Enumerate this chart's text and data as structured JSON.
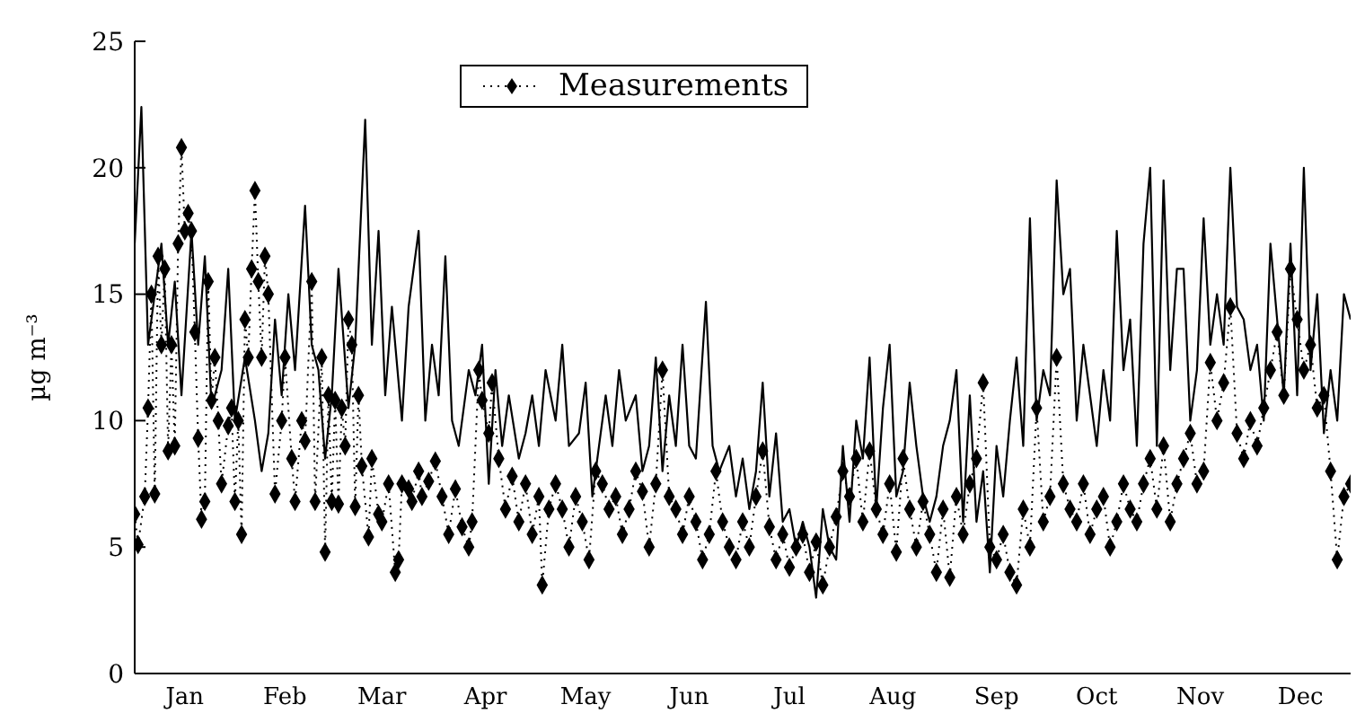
{
  "chart_data": {
    "type": "line",
    "ylabel": "µg m⁻³",
    "xlim": [
      "--01-01",
      "--12-31"
    ],
    "ylim": [
      0,
      25
    ],
    "yticks": [
      0,
      5,
      10,
      15,
      20,
      25
    ],
    "xticks": [
      {
        "value": "--01-16",
        "label": "Jan"
      },
      {
        "value": "--02-15",
        "label": "Feb"
      },
      {
        "value": "--03-16",
        "label": "Mar"
      },
      {
        "value": "--04-16",
        "label": "Apr"
      },
      {
        "value": "--05-16",
        "label": "May"
      },
      {
        "value": "--06-16",
        "label": "Jun"
      },
      {
        "value": "--07-16",
        "label": "Jul"
      },
      {
        "value": "--08-16",
        "label": "Aug"
      },
      {
        "value": "--09-16",
        "label": "Sep"
      },
      {
        "value": "--10-16",
        "label": "Oct"
      },
      {
        "value": "--11-16",
        "label": "Nov"
      },
      {
        "value": "--12-16",
        "label": "Dec"
      }
    ],
    "grid": false,
    "legend": "top",
    "tick_labels": "xy",
    "series": [
      {
        "color": "#000000",
        "marker": "none",
        "line_style": "solid",
        "x": [
          "--01-01",
          "--01-03",
          "--01-05",
          "--01-07",
          "--01-09",
          "--01-11",
          "--01-13",
          "--01-15",
          "--01-18",
          "--01-20",
          "--01-22",
          "--01-24",
          "--01-27",
          "--01-29",
          "--01-31",
          "--02-03",
          "--02-06",
          "--02-08",
          "--02-10",
          "--02-12",
          "--02-14",
          "--02-16",
          "--02-18",
          "--02-21",
          "--02-23",
          "--02-25",
          "--02-27",
          "--03-01",
          "--03-03",
          "--03-06",
          "--03-08",
          "--03-11",
          "--03-13",
          "--03-15",
          "--03-17",
          "--03-19",
          "--03-22",
          "--03-24",
          "--03-27",
          "--03-29",
          "--03-31",
          "--04-02",
          "--04-04",
          "--04-06",
          "--04-08",
          "--04-11",
          "--04-13",
          "--04-15",
          "--04-17",
          "--04-19",
          "--04-21",
          "--04-23",
          "--04-26",
          "--04-28",
          "--04-30",
          "--05-02",
          "--05-04",
          "--05-07",
          "--05-09",
          "--05-11",
          "--05-14",
          "--05-16",
          "--05-18",
          "--05-20",
          "--05-22",
          "--05-24",
          "--05-26",
          "--05-28",
          "--05-31",
          "--06-02",
          "--06-04",
          "--06-06",
          "--06-08",
          "--06-10",
          "--06-12",
          "--06-14",
          "--06-16",
          "--06-18",
          "--06-21",
          "--06-23",
          "--06-25",
          "--06-28",
          "--06-30",
          "--07-02",
          "--07-04",
          "--07-06",
          "--07-08",
          "--07-10",
          "--07-12",
          "--07-14",
          "--07-16",
          "--07-18",
          "--07-20",
          "--07-22",
          "--07-24",
          "--07-26",
          "--07-28",
          "--07-30",
          "--08-01",
          "--08-03",
          "--08-05",
          "--08-07",
          "--08-09",
          "--08-11",
          "--08-13",
          "--08-15",
          "--08-17",
          "--08-19",
          "--08-21",
          "--08-23",
          "--08-25",
          "--08-27",
          "--08-29",
          "--08-31",
          "--09-02",
          "--09-04",
          "--09-06",
          "--09-08",
          "--09-10",
          "--09-12",
          "--09-14",
          "--09-16",
          "--09-18",
          "--09-20",
          "--09-22",
          "--09-24",
          "--09-26",
          "--09-28",
          "--09-30",
          "--10-02",
          "--10-04",
          "--10-06",
          "--10-08",
          "--10-10",
          "--10-12",
          "--10-14",
          "--10-16",
          "--10-18",
          "--10-20",
          "--10-22",
          "--10-24",
          "--10-26",
          "--10-28",
          "--10-30",
          "--11-01",
          "--11-03",
          "--11-05",
          "--11-07",
          "--11-09",
          "--11-11",
          "--11-13",
          "--11-15",
          "--11-17",
          "--11-19",
          "--11-21",
          "--11-23",
          "--11-25",
          "--11-27",
          "--11-29",
          "--12-01",
          "--12-03",
          "--12-05",
          "--12-07",
          "--12-09",
          "--12-11",
          "--12-13",
          "--12-15",
          "--12-17",
          "--12-19",
          "--12-21",
          "--12-23",
          "--12-25",
          "--12-27",
          "--12-29",
          "--12-31"
        ],
        "values": [
          17,
          22.4,
          13,
          15,
          17,
          13,
          15.5,
          11,
          17.5,
          13,
          16.5,
          10.5,
          12,
          16,
          10,
          12.5,
          10,
          8,
          9.5,
          14,
          11,
          15,
          12,
          18.5,
          13,
          12,
          8.5,
          11,
          16,
          10.5,
          13,
          21.9,
          13,
          17.5,
          11,
          14.5,
          10,
          14.5,
          17.5,
          10,
          13,
          11,
          16.5,
          10,
          9,
          12,
          11,
          13,
          7.5,
          12,
          9,
          11,
          8.5,
          9.5,
          11,
          9,
          12,
          10,
          13,
          9,
          9.5,
          11.5,
          7,
          9,
          11,
          9,
          12,
          10,
          11,
          8,
          9,
          12.5,
          8,
          11,
          9,
          13,
          9,
          8.5,
          14.7,
          9,
          8,
          9,
          7,
          8.5,
          6.5,
          8,
          11.5,
          7,
          9.5,
          6,
          6.5,
          5,
          6,
          5,
          3,
          6.5,
          5,
          4.5,
          9,
          6,
          10,
          8.5,
          12.5,
          6.5,
          10.5,
          13,
          7,
          8,
          11.5,
          9,
          7,
          6,
          7,
          9,
          10,
          12,
          6,
          11,
          6,
          8,
          4,
          9,
          7,
          10,
          12.5,
          9,
          18,
          10,
          12,
          11,
          19.5,
          15,
          16,
          10,
          13,
          11,
          9,
          12,
          10,
          17.5,
          12,
          14,
          9,
          17,
          20,
          9,
          19.5,
          12,
          16,
          16,
          10,
          12,
          18,
          13,
          15,
          13,
          20,
          14.5,
          14,
          12,
          13,
          10,
          17,
          14,
          11,
          17,
          11,
          20,
          12,
          15,
          9.5,
          12,
          10,
          15,
          14
        ]
      },
      {
        "name": "Measurements",
        "color": "#000000",
        "marker": "diamond",
        "line_style": "dotted",
        "x": [
          "--01-01",
          "--01-02",
          "--01-04",
          "--01-05",
          "--01-06",
          "--01-07",
          "--01-08",
          "--01-09",
          "--01-10",
          "--01-11",
          "--01-12",
          "--01-13",
          "--01-14",
          "--01-15",
          "--01-16",
          "--01-17",
          "--01-18",
          "--01-19",
          "--01-20",
          "--01-21",
          "--01-22",
          "--01-23",
          "--01-24",
          "--01-25",
          "--01-26",
          "--01-27",
          "--01-29",
          "--01-30",
          "--01-31",
          "--02-01",
          "--02-02",
          "--02-03",
          "--02-04",
          "--02-05",
          "--02-06",
          "--02-07",
          "--02-08",
          "--02-09",
          "--02-10",
          "--02-12",
          "--02-14",
          "--02-15",
          "--02-17",
          "--02-18",
          "--02-20",
          "--02-21",
          "--02-23",
          "--02-24",
          "--02-26",
          "--02-27",
          "--02-28",
          "--03-01",
          "--03-02",
          "--03-03",
          "--03-04",
          "--03-05",
          "--03-06",
          "--03-07",
          "--03-08",
          "--03-09",
          "--03-10",
          "--03-12",
          "--03-13",
          "--03-15",
          "--03-16",
          "--03-18",
          "--03-20",
          "--03-21",
          "--03-22",
          "--03-24",
          "--03-25",
          "--03-27",
          "--03-28",
          "--03-30",
          "--04-01",
          "--04-03",
          "--04-05",
          "--04-07",
          "--04-09",
          "--04-11",
          "--04-12",
          "--04-14",
          "--04-15",
          "--04-17",
          "--04-18",
          "--04-20",
          "--04-22",
          "--04-24",
          "--04-26",
          "--04-28",
          "--04-30",
          "--05-02",
          "--05-03",
          "--05-05",
          "--05-07",
          "--05-09",
          "--05-11",
          "--05-13",
          "--05-15",
          "--05-17",
          "--05-19",
          "--05-21",
          "--05-23",
          "--05-25",
          "--05-27",
          "--05-29",
          "--05-31",
          "--06-02",
          "--06-04",
          "--06-06",
          "--06-08",
          "--06-10",
          "--06-12",
          "--06-14",
          "--06-16",
          "--06-18",
          "--06-20",
          "--06-22",
          "--06-24",
          "--06-26",
          "--06-28",
          "--06-30",
          "--07-02",
          "--07-04",
          "--07-06",
          "--07-08",
          "--07-10",
          "--07-12",
          "--07-14",
          "--07-16",
          "--07-18",
          "--07-20",
          "--07-22",
          "--07-24",
          "--07-26",
          "--07-28",
          "--07-30",
          "--08-01",
          "--08-03",
          "--08-05",
          "--08-07",
          "--08-09",
          "--08-11",
          "--08-13",
          "--08-15",
          "--08-17",
          "--08-19",
          "--08-21",
          "--08-23",
          "--08-25",
          "--08-27",
          "--08-29",
          "--08-31",
          "--09-02",
          "--09-04",
          "--09-06",
          "--09-08",
          "--09-10",
          "--09-12",
          "--09-14",
          "--09-16",
          "--09-18",
          "--09-20",
          "--09-22",
          "--09-24",
          "--09-26",
          "--09-28",
          "--09-30",
          "--10-02",
          "--10-04",
          "--10-06",
          "--10-08",
          "--10-10",
          "--10-12",
          "--10-14",
          "--10-16",
          "--10-18",
          "--10-20",
          "--10-22",
          "--10-24",
          "--10-26",
          "--10-28",
          "--10-30",
          "--11-01",
          "--11-03",
          "--11-05",
          "--11-07",
          "--11-09",
          "--11-11",
          "--11-13",
          "--11-15",
          "--11-17",
          "--11-19",
          "--11-21",
          "--11-23",
          "--11-25",
          "--11-27",
          "--11-29",
          "--12-01",
          "--12-03",
          "--12-05",
          "--12-07",
          "--12-09",
          "--12-11",
          "--12-13",
          "--12-15",
          "--12-17",
          "--12-19",
          "--12-21",
          "--12-23",
          "--12-25",
          "--12-27",
          "--12-29",
          "--12-31"
        ],
        "values": [
          6.3,
          5.1,
          7,
          10.5,
          15,
          7.1,
          16.5,
          13,
          16,
          8.8,
          13,
          9,
          17,
          20.8,
          17.5,
          18.2,
          17.5,
          13.5,
          9.3,
          6.1,
          6.8,
          15.5,
          10.8,
          12.5,
          10,
          7.5,
          9.8,
          10.5,
          6.8,
          10,
          5.5,
          14,
          12.5,
          16,
          19.1,
          15.5,
          12.5,
          16.5,
          15,
          7.1,
          10,
          12.5,
          8.5,
          6.8,
          10,
          9.2,
          15.5,
          6.8,
          12.5,
          4.8,
          11,
          6.8,
          10.8,
          6.7,
          10.5,
          9,
          14,
          13,
          6.6,
          11,
          8.2,
          5.4,
          8.5,
          6.3,
          6,
          7.5,
          4,
          4.5,
          7.5,
          7.3,
          6.8,
          8,
          7,
          7.6,
          8.4,
          7,
          5.5,
          7.3,
          5.8,
          5,
          6,
          12,
          10.8,
          9.5,
          11.5,
          8.5,
          6.5,
          7.8,
          6,
          7.5,
          5.5,
          7,
          3.5,
          6.5,
          7.5,
          6.5,
          5,
          7,
          6,
          4.5,
          8,
          7.5,
          6.5,
          7,
          5.5,
          6.5,
          8,
          7.2,
          5,
          7.5,
          12,
          7,
          6.5,
          5.5,
          7,
          6,
          4.5,
          5.5,
          8,
          6,
          5,
          4.5,
          6,
          5,
          7,
          8.8,
          5.8,
          4.5,
          5.5,
          4.2,
          5,
          5.5,
          4,
          5.2,
          3.5,
          5,
          6.2,
          8,
          7,
          8.5,
          6,
          8.8,
          6.5,
          5.5,
          7.5,
          4.8,
          8.5,
          6.5,
          5,
          6.8,
          5.5,
          4,
          6.5,
          3.8,
          7,
          5.5,
          7.5,
          8.5,
          11.5,
          5,
          4.5,
          5.5,
          4,
          3.5,
          6.5,
          5,
          10.5,
          6,
          7,
          12.5,
          7.5,
          6.5,
          6,
          7.5,
          5.5,
          6.5,
          7,
          5,
          6,
          7.5,
          6.5,
          6,
          7.5,
          8.5,
          6.5,
          9,
          6,
          7.5,
          8.5,
          9.5,
          7.5,
          8,
          12.3,
          10,
          11.5,
          14.5,
          9.5,
          8.5,
          10,
          9,
          10.5,
          12,
          13.5,
          11,
          16,
          14,
          12,
          13,
          10.5,
          11,
          8,
          4.5,
          7,
          7.5
        ]
      }
    ]
  }
}
